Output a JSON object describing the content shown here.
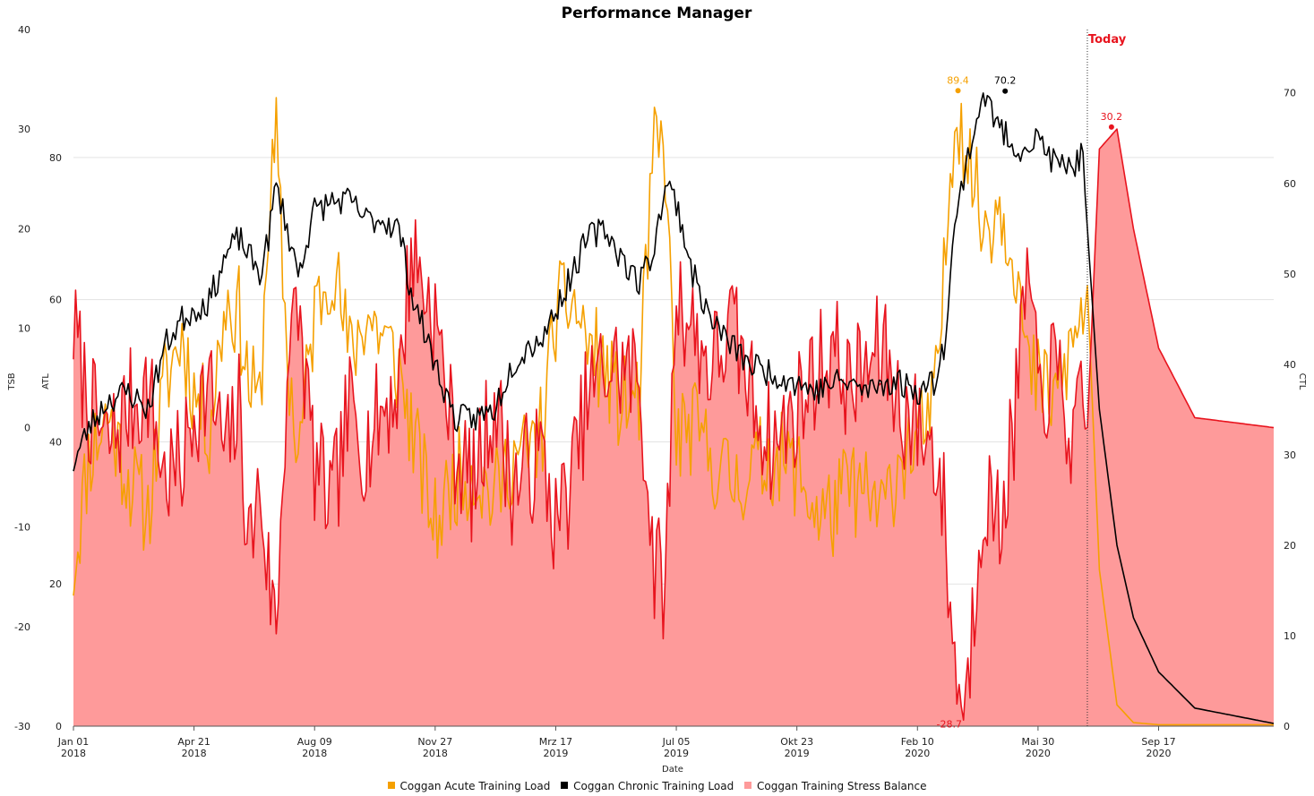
{
  "chart_data": {
    "type": "line",
    "title": "Performance Manager",
    "xlabel": "Date",
    "today_label": "Today",
    "left_axes": [
      {
        "label": "TSB",
        "ylim": [
          -30,
          40
        ],
        "ticks": [
          "40",
          "30",
          "20",
          "10",
          "0",
          "-10",
          "-20",
          "-30"
        ]
      },
      {
        "label": "ATL",
        "ylim": [
          0,
          98
        ],
        "ticks": [
          "80",
          "60",
          "40",
          "20",
          "0"
        ]
      }
    ],
    "right_axis": {
      "label": "CTL",
      "ylim": [
        0,
        77
      ],
      "ticks": [
        "70",
        "60",
        "50",
        "40",
        "30",
        "20",
        "10",
        "0"
      ]
    },
    "x_ticks": [
      {
        "date": "Jan 01",
        "year": "2018"
      },
      {
        "date": "Apr 21",
        "year": "2018"
      },
      {
        "date": "Aug 09",
        "year": "2018"
      },
      {
        "date": "Nov 27",
        "year": "2018"
      },
      {
        "date": "Mrz 17",
        "year": "2019"
      },
      {
        "date": "Jul 05",
        "year": "2019"
      },
      {
        "date": "Okt 23",
        "year": "2019"
      },
      {
        "date": "Feb 10",
        "year": "2020"
      },
      {
        "date": "Mai 30",
        "year": "2020"
      },
      {
        "date": "Sep 17",
        "year": "2020"
      }
    ],
    "x_range": [
      "2018-01-01",
      "2020-12-31"
    ],
    "today_date": "2020-07-14",
    "grid": true,
    "legend_position": "bottom",
    "colors": {
      "atl": "#f5a000",
      "ctl": "#000000",
      "tsb_line": "#e8141e",
      "tsb_fill": "#fe9a9a",
      "today": "#e8141e"
    },
    "series": [
      {
        "name": "Coggan Acute Training Load",
        "axis": "ATL",
        "x": [
          "2018-01-01",
          "2018-01-15",
          "2018-02-01",
          "2018-02-20",
          "2018-03-10",
          "2018-03-25",
          "2018-04-10",
          "2018-04-21",
          "2018-05-05",
          "2018-05-20",
          "2018-06-01",
          "2018-06-10",
          "2018-06-20",
          "2018-06-28",
          "2018-07-05",
          "2018-07-15",
          "2018-07-25",
          "2018-08-09",
          "2018-08-25",
          "2018-09-10",
          "2018-09-25",
          "2018-10-10",
          "2018-10-25",
          "2018-11-05",
          "2018-11-27",
          "2018-12-15",
          "2019-01-01",
          "2019-01-20",
          "2019-02-05",
          "2019-02-20",
          "2019-03-05",
          "2019-03-17",
          "2019-04-01",
          "2019-04-15",
          "2019-05-01",
          "2019-05-15",
          "2019-06-01",
          "2019-06-15",
          "2019-06-25",
          "2019-07-05",
          "2019-07-20",
          "2019-08-05",
          "2019-08-25",
          "2019-09-10",
          "2019-10-01",
          "2019-10-23",
          "2019-11-10",
          "2019-11-25",
          "2019-12-10",
          "2019-12-25",
          "2020-01-10",
          "2020-01-25",
          "2020-02-10",
          "2020-02-25",
          "2020-03-05",
          "2020-03-15",
          "2020-03-25",
          "2020-04-10",
          "2020-04-25",
          "2020-05-10",
          "2020-05-20",
          "2020-05-30",
          "2020-06-15",
          "2020-07-01",
          "2020-07-10",
          "2020-07-14",
          "2020-07-25",
          "2020-08-10",
          "2020-08-25",
          "2020-09-17",
          "2020-10-20",
          "2020-12-31"
        ],
        "values": [
          22,
          38,
          44,
          35,
          30,
          48,
          55,
          47,
          42,
          60,
          58,
          48,
          45,
          72,
          82,
          52,
          38,
          58,
          66,
          52,
          58,
          55,
          50,
          42,
          28,
          35,
          36,
          32,
          38,
          38,
          42,
          58,
          60,
          54,
          50,
          45,
          46,
          82,
          80,
          40,
          42,
          38,
          34,
          36,
          38,
          36,
          30,
          30,
          34,
          32,
          30,
          38,
          40,
          44,
          62,
          88,
          82,
          70,
          74,
          66,
          50,
          48,
          46,
          54,
          58,
          62,
          22,
          3,
          0.5,
          0.2,
          0.2,
          0.2
        ]
      },
      {
        "name": "Coggan Chronic Training Load",
        "axis": "CTL",
        "x": [
          "2018-01-01",
          "2018-01-15",
          "2018-02-01",
          "2018-02-20",
          "2018-03-10",
          "2018-03-25",
          "2018-04-10",
          "2018-04-21",
          "2018-05-05",
          "2018-05-20",
          "2018-06-01",
          "2018-06-10",
          "2018-06-20",
          "2018-06-28",
          "2018-07-05",
          "2018-07-15",
          "2018-07-25",
          "2018-08-09",
          "2018-08-25",
          "2018-09-10",
          "2018-09-25",
          "2018-10-10",
          "2018-10-25",
          "2018-11-05",
          "2018-11-27",
          "2018-12-15",
          "2019-01-01",
          "2019-01-20",
          "2019-02-05",
          "2019-02-20",
          "2019-03-05",
          "2019-03-17",
          "2019-04-01",
          "2019-04-15",
          "2019-05-01",
          "2019-05-15",
          "2019-06-01",
          "2019-06-15",
          "2019-06-25",
          "2019-07-05",
          "2019-07-20",
          "2019-08-05",
          "2019-08-25",
          "2019-09-10",
          "2019-10-01",
          "2019-10-23",
          "2019-11-10",
          "2019-11-25",
          "2019-12-10",
          "2019-12-25",
          "2020-01-10",
          "2020-01-25",
          "2020-02-10",
          "2020-02-25",
          "2020-03-05",
          "2020-03-15",
          "2020-03-25",
          "2020-04-10",
          "2020-04-25",
          "2020-05-10",
          "2020-05-20",
          "2020-05-30",
          "2020-06-15",
          "2020-07-01",
          "2020-07-10",
          "2020-07-14",
          "2020-07-25",
          "2020-08-10",
          "2020-08-25",
          "2020-09-17",
          "2020-10-20",
          "2020-12-31"
        ],
        "values": [
          29,
          33,
          36,
          37,
          35,
          42,
          45,
          46,
          47,
          52,
          54,
          52,
          50,
          54,
          60,
          55,
          50,
          57,
          58,
          58,
          56,
          56,
          55,
          48,
          40,
          34,
          34,
          35,
          40,
          42,
          43,
          46,
          50,
          54,
          55,
          52,
          49,
          53,
          60,
          58,
          50,
          45,
          42,
          40,
          39,
          38,
          37,
          38,
          38,
          37,
          38,
          38,
          37,
          38,
          42,
          55,
          62,
          70,
          66,
          64,
          64,
          65,
          62,
          62,
          63,
          55,
          35,
          20,
          12,
          6,
          2,
          0.3
        ]
      },
      {
        "name": "Coggan Training Stress Balance",
        "axis": "TSB",
        "x": [
          "2018-01-01",
          "2018-01-15",
          "2018-02-01",
          "2018-02-20",
          "2018-03-10",
          "2018-03-25",
          "2018-04-10",
          "2018-04-21",
          "2018-05-05",
          "2018-05-20",
          "2018-06-01",
          "2018-06-10",
          "2018-06-20",
          "2018-06-28",
          "2018-07-05",
          "2018-07-15",
          "2018-07-25",
          "2018-08-09",
          "2018-08-25",
          "2018-09-10",
          "2018-09-25",
          "2018-10-10",
          "2018-10-25",
          "2018-11-05",
          "2018-11-27",
          "2018-12-15",
          "2019-01-01",
          "2019-01-20",
          "2019-02-05",
          "2019-02-20",
          "2019-03-05",
          "2019-03-17",
          "2019-04-01",
          "2019-04-15",
          "2019-05-01",
          "2019-05-15",
          "2019-06-01",
          "2019-06-15",
          "2019-06-25",
          "2019-07-05",
          "2019-07-20",
          "2019-08-05",
          "2019-08-25",
          "2019-09-10",
          "2019-10-01",
          "2019-10-23",
          "2019-11-10",
          "2019-11-25",
          "2019-12-10",
          "2019-12-25",
          "2020-01-10",
          "2020-01-25",
          "2020-02-10",
          "2020-02-25",
          "2020-03-05",
          "2020-03-15",
          "2020-03-25",
          "2020-04-10",
          "2020-04-25",
          "2020-05-10",
          "2020-05-20",
          "2020-05-30",
          "2020-06-15",
          "2020-07-01",
          "2020-07-10",
          "2020-07-14",
          "2020-07-25",
          "2020-08-10",
          "2020-08-25",
          "2020-09-17",
          "2020-10-20",
          "2020-12-31"
        ],
        "values": [
          10,
          2,
          -2,
          2,
          4,
          -5,
          -4,
          2,
          4,
          -3,
          2,
          -12,
          -6,
          -15,
          -20,
          6,
          12,
          -4,
          -8,
          2,
          -2,
          2,
          4,
          18,
          11,
          -2,
          -6,
          3,
          -6,
          -4,
          -3,
          -10,
          -5,
          3,
          6,
          6,
          5,
          -14,
          -16,
          14,
          10,
          6,
          10,
          4,
          -2,
          2,
          6,
          8,
          4,
          6,
          8,
          2,
          0,
          -2,
          -8,
          -24,
          -28,
          -6,
          -10,
          2,
          16,
          3,
          6,
          -2,
          2,
          0,
          28,
          30,
          20,
          8,
          1,
          0
        ]
      }
    ],
    "annotations": [
      {
        "series": "Coggan Acute Training Load",
        "label": "89.4",
        "date": "2020-03-18",
        "value": 89.4
      },
      {
        "series": "Coggan Chronic Training Load",
        "label": "70.2",
        "date": "2020-04-30",
        "value": 70.2
      },
      {
        "series": "Coggan Training Stress Balance",
        "label": "30.2",
        "date": "2020-08-05",
        "value": 30.2
      },
      {
        "series": "Coggan Training Stress Balance",
        "label": "-28.7",
        "date": "2020-03-10",
        "value": -28.7
      }
    ]
  }
}
